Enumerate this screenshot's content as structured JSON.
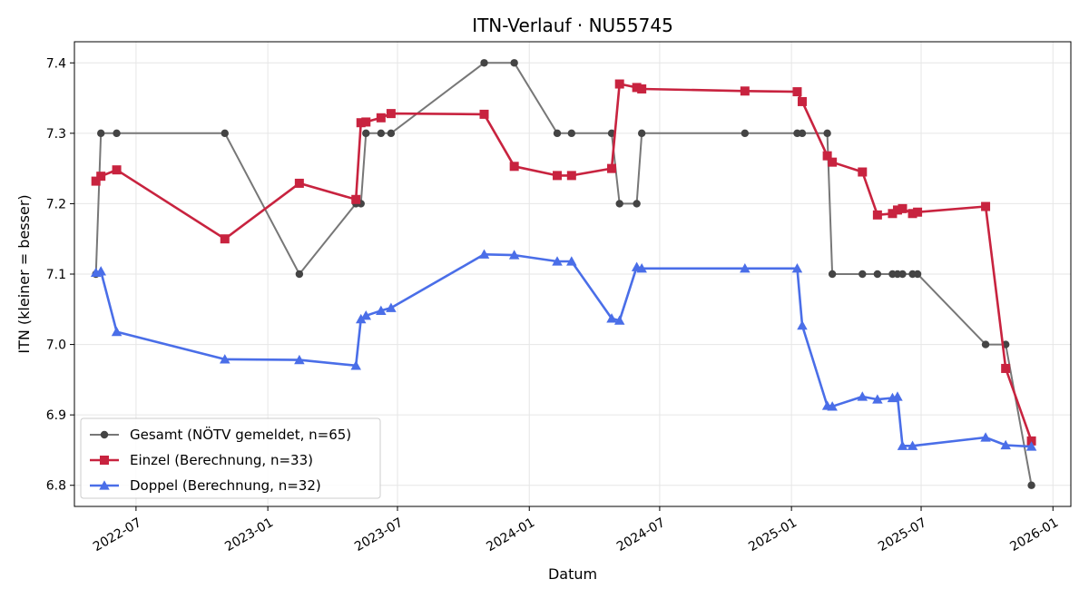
{
  "chart_data": {
    "type": "line",
    "title": "ITN-Verlauf · NU55745",
    "xlabel": "Datum",
    "ylabel": "ITN  (kleiner = besser)",
    "xlim": [
      "2022-04-06",
      "2026-01-26"
    ],
    "ylim": [
      6.77,
      7.43
    ],
    "x_ticks": [
      "2022-07-01",
      "2023-01-01",
      "2023-07-01",
      "2024-01-01",
      "2024-07-01",
      "2025-01-01",
      "2025-07-01",
      "2026-01-01"
    ],
    "x_tick_labels": [
      "2022-07",
      "2023-01",
      "2023-07",
      "2024-01",
      "2024-07",
      "2025-01",
      "2025-07",
      "2026-01"
    ],
    "y_ticks": [
      6.8,
      6.9,
      7.0,
      7.1,
      7.2,
      7.3,
      7.4
    ],
    "y_tick_labels": [
      "6.8",
      "6.9",
      "7.0",
      "7.1",
      "7.2",
      "7.3",
      "7.4"
    ],
    "grid": true,
    "legend_position": "lower-left",
    "series": [
      {
        "name": "Gesamt (NÖTV gemeldet, n=65)",
        "color": "#777777",
        "marker_color": "#444444",
        "marker": "circle",
        "x": [
          "2022-05-06",
          "2022-05-13",
          "2022-06-04",
          "2022-11-02",
          "2023-02-14",
          "2023-05-04",
          "2023-05-11",
          "2023-05-18",
          "2023-06-08",
          "2023-06-22",
          "2023-10-30",
          "2023-12-11",
          "2024-02-09",
          "2024-02-29",
          "2024-04-25",
          "2024-05-06",
          "2024-05-30",
          "2024-06-06",
          "2024-10-28",
          "2025-01-09",
          "2025-01-16",
          "2025-02-20",
          "2025-02-27",
          "2025-04-10",
          "2025-05-01",
          "2025-05-22",
          "2025-05-29",
          "2025-06-05",
          "2025-06-19",
          "2025-06-26",
          "2025-09-29",
          "2025-10-27",
          "2025-12-02"
        ],
        "y": [
          7.1,
          7.3,
          7.3,
          7.3,
          7.1,
          7.2,
          7.2,
          7.3,
          7.3,
          7.3,
          7.4,
          7.4,
          7.3,
          7.3,
          7.3,
          7.2,
          7.2,
          7.3,
          7.3,
          7.3,
          7.3,
          7.3,
          7.1,
          7.1,
          7.1,
          7.1,
          7.1,
          7.1,
          7.1,
          7.1,
          7.0,
          7.0,
          6.8
        ]
      },
      {
        "name": "Einzel (Berechnung, n=33)",
        "color": "#c8233f",
        "marker": "square",
        "x": [
          "2022-05-06",
          "2022-05-13",
          "2022-06-04",
          "2022-11-02",
          "2023-02-14",
          "2023-05-04",
          "2023-05-11",
          "2023-05-18",
          "2023-06-08",
          "2023-06-22",
          "2023-10-30",
          "2023-12-11",
          "2024-02-09",
          "2024-02-29",
          "2024-04-25",
          "2024-05-06",
          "2024-05-30",
          "2024-06-06",
          "2024-10-28",
          "2025-01-09",
          "2025-01-16",
          "2025-02-20",
          "2025-02-27",
          "2025-04-10",
          "2025-05-01",
          "2025-05-22",
          "2025-05-29",
          "2025-06-05",
          "2025-06-19",
          "2025-06-26",
          "2025-09-29",
          "2025-10-27",
          "2025-12-02"
        ],
        "y": [
          7.232,
          7.239,
          7.248,
          7.15,
          7.229,
          7.206,
          7.315,
          7.316,
          7.322,
          7.328,
          7.327,
          7.253,
          7.24,
          7.24,
          7.25,
          7.37,
          7.365,
          7.363,
          7.36,
          7.359,
          7.345,
          7.268,
          7.259,
          7.245,
          7.184,
          7.186,
          7.191,
          7.193,
          7.186,
          7.188,
          7.196,
          6.966,
          6.863
        ]
      },
      {
        "name": "Doppel (Berechnung, n=32)",
        "color": "#4a6ee8",
        "marker": "triangle",
        "x": [
          "2022-05-06",
          "2022-05-13",
          "2022-06-04",
          "2022-11-02",
          "2023-02-14",
          "2023-05-04",
          "2023-05-11",
          "2023-05-18",
          "2023-06-08",
          "2023-06-22",
          "2023-10-30",
          "2023-12-11",
          "2024-02-09",
          "2024-02-29",
          "2024-04-25",
          "2024-05-06",
          "2024-05-30",
          "2024-06-06",
          "2024-10-28",
          "2025-01-09",
          "2025-01-16",
          "2025-02-20",
          "2025-02-27",
          "2025-04-10",
          "2025-05-01",
          "2025-05-22",
          "2025-05-29",
          "2025-06-05",
          "2025-06-19",
          "2025-09-29",
          "2025-10-27",
          "2025-12-02"
        ],
        "y": [
          7.102,
          7.104,
          7.018,
          6.979,
          6.978,
          6.97,
          7.036,
          7.041,
          7.048,
          7.052,
          7.128,
          7.127,
          7.118,
          7.118,
          7.037,
          7.034,
          7.11,
          7.108,
          7.108,
          7.108,
          7.027,
          6.913,
          6.912,
          6.926,
          6.922,
          6.924,
          6.926,
          6.856,
          6.856,
          6.868,
          6.857,
          6.855
        ]
      }
    ]
  }
}
